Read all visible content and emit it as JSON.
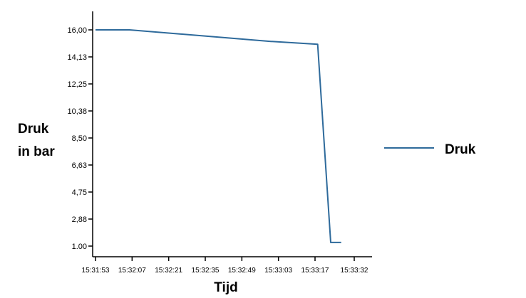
{
  "chart_data": {
    "type": "line",
    "title": "",
    "ylabel_lines": [
      "Druk",
      "in bar"
    ],
    "xlabel": "Tijd",
    "y_ticks": [
      "16,00",
      "14,13",
      "12,25",
      "10,38",
      "8,50",
      "6,63",
      "4,75",
      "2,88",
      "1.00"
    ],
    "y_tick_values": [
      16.0,
      14.125,
      12.25,
      10.375,
      8.5,
      6.625,
      4.75,
      2.875,
      1.0
    ],
    "ylim": [
      1.0,
      16.0
    ],
    "x_ticks": [
      "15:31:53",
      "15:32:07",
      "15:32:21",
      "15:32:35",
      "15:32:49",
      "15:33:03",
      "15:33:17",
      "15:33:32"
    ],
    "series": [
      {
        "name": "Druk",
        "color": "#2e6a9b",
        "x": [
          "15:31:53",
          "15:32:06",
          "15:33:00",
          "15:33:18",
          "15:33:23",
          "15:33:27"
        ],
        "values": [
          16.0,
          16.0,
          15.2,
          15.0,
          1.25,
          1.25
        ]
      }
    ],
    "legend_position": "right",
    "grid": false
  }
}
